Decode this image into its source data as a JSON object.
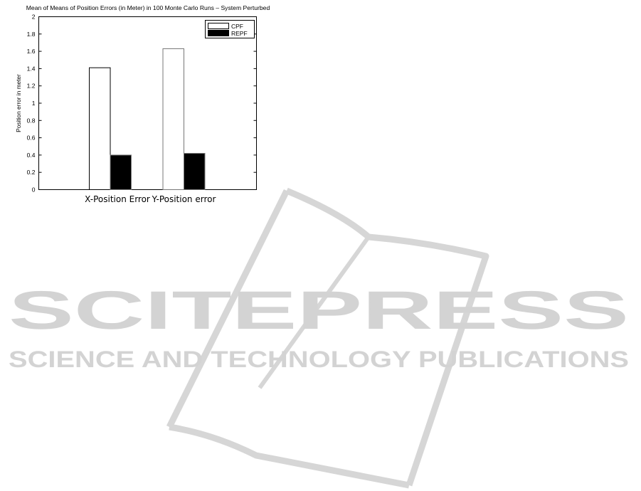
{
  "chart_data": {
    "type": "bar",
    "title": "Mean of Means of Position Errors (in Meter) in 100 Monte Carlo Runs – System Perturbed",
    "xlabel": "",
    "ylabel": "Position error in meter",
    "categories": [
      "X-Position Error",
      "Y-Position error"
    ],
    "series": [
      {
        "name": "CPF",
        "values": [
          1.41,
          1.63
        ],
        "color": "#ffffff"
      },
      {
        "name": "REPF",
        "values": [
          0.4,
          0.42
        ],
        "color": "#000000"
      }
    ],
    "ylim": [
      0,
      2
    ],
    "yticks": [
      "0",
      "0.2",
      "0.4",
      "0.6",
      "0.8",
      "1",
      "1.2",
      "1.4",
      "1.6",
      "1.8",
      "2"
    ],
    "grid": false,
    "legend_position": "top-right"
  },
  "watermark": {
    "title": "SCITEPRESS",
    "subtitle": "SCIENCE AND TECHNOLOGY PUBLICATIONS",
    "color": "#d3d3d3"
  }
}
